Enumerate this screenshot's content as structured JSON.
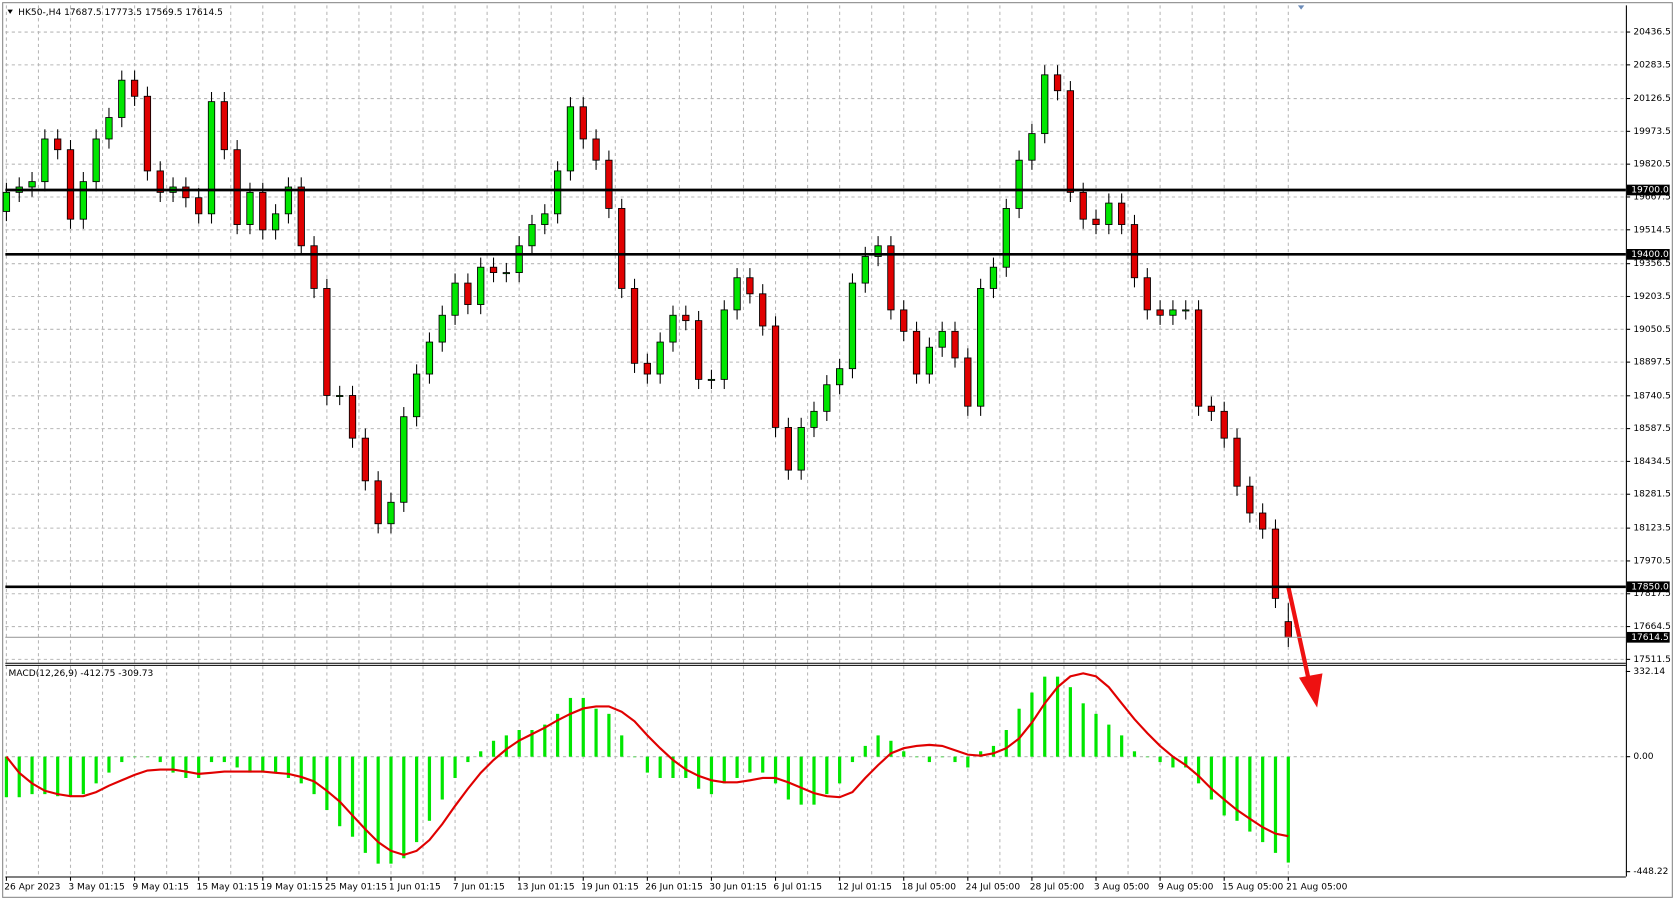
{
  "chart_data": [
    {
      "type": "candlestick",
      "title": "HK50-,H4  17687.5 17773.5 17569.5 17614.5",
      "categories": [
        "26 Apr 2023",
        null,
        null,
        null,
        null,
        "3 May 01:15",
        null,
        null,
        null,
        null,
        "9 May 01:15",
        null,
        null,
        null,
        null,
        "15 May 01:15",
        null,
        null,
        null,
        null,
        "19 May 01:15",
        null,
        null,
        null,
        null,
        "25 May 01:15",
        null,
        null,
        null,
        null,
        "1 Jun 01:15",
        null,
        null,
        null,
        null,
        "7 Jun 01:15",
        null,
        null,
        null,
        null,
        "13 Jun 01:15",
        null,
        null,
        null,
        null,
        "19 Jun 01:15",
        null,
        null,
        null,
        null,
        "26 Jun 01:15",
        null,
        null,
        null,
        null,
        "30 Jun 01:15",
        null,
        null,
        null,
        null,
        "6 Jul 01:15",
        null,
        null,
        null,
        null,
        "12 Jul 01:15",
        null,
        null,
        null,
        null,
        "18 Jul 05:00",
        null,
        null,
        null,
        null,
        "24 Jul 05:00",
        null,
        null,
        null,
        null,
        "28 Jul 05:00",
        null,
        null,
        null,
        null,
        "3 Aug 05:00",
        null,
        null,
        null,
        null,
        "9 Aug 05:00",
        null,
        null,
        null,
        null,
        "15 Aug 05:00",
        null,
        null,
        null,
        null,
        "21 Aug 05:00"
      ],
      "candles": [
        [
          19600,
          19734,
          19555,
          19689
        ],
        [
          19689,
          19759,
          19644,
          19714
        ],
        [
          19714,
          19784,
          19669,
          19739
        ],
        [
          19739,
          19983,
          19694,
          19938
        ],
        [
          19938,
          19983,
          19843,
          19888
        ],
        [
          19888,
          19933,
          19519,
          19564
        ],
        [
          19564,
          19784,
          19519,
          19739
        ],
        [
          19739,
          19983,
          19694,
          19938
        ],
        [
          19938,
          20083,
          19893,
          20038
        ],
        [
          20038,
          20257,
          19993,
          20212
        ],
        [
          20212,
          20257,
          20092,
          20137
        ],
        [
          20137,
          20182,
          19744,
          19789
        ],
        [
          19789,
          19834,
          19644,
          19689
        ],
        [
          19689,
          19759,
          19644,
          19714
        ],
        [
          19714,
          19759,
          19619,
          19664
        ],
        [
          19664,
          19709,
          19544,
          19589
        ],
        [
          19589,
          20157,
          19544,
          20112
        ],
        [
          20112,
          20157,
          19843,
          19888
        ],
        [
          19888,
          19933,
          19494,
          19539
        ],
        [
          19539,
          19734,
          19494,
          19689
        ],
        [
          19689,
          19734,
          19469,
          19514
        ],
        [
          19514,
          19634,
          19469,
          19589
        ],
        [
          19589,
          19759,
          19544,
          19714
        ],
        [
          19714,
          19759,
          19395,
          19440
        ],
        [
          19440,
          19485,
          19196,
          19241
        ],
        [
          19241,
          19286,
          18697,
          18742
        ],
        [
          18742,
          18787,
          18697,
          18742
        ],
        [
          18742,
          18787,
          18498,
          18543
        ],
        [
          18543,
          18588,
          18299,
          18344
        ],
        [
          18344,
          18389,
          18099,
          18144
        ],
        [
          18144,
          18289,
          18099,
          18244
        ],
        [
          18244,
          18688,
          18199,
          18643
        ],
        [
          18643,
          18887,
          18598,
          18842
        ],
        [
          18842,
          19036,
          18797,
          18991
        ],
        [
          18991,
          19161,
          18946,
          19116
        ],
        [
          19116,
          19311,
          19071,
          19266
        ],
        [
          19266,
          19311,
          19121,
          19166
        ],
        [
          19166,
          19385,
          19121,
          19340
        ],
        [
          19340,
          19385,
          19270,
          19315
        ],
        [
          19315,
          19360,
          19270,
          19315
        ],
        [
          19315,
          19485,
          19270,
          19440
        ],
        [
          19440,
          19584,
          19395,
          19539
        ],
        [
          19539,
          19634,
          19494,
          19589
        ],
        [
          19589,
          19834,
          19544,
          19789
        ],
        [
          19789,
          20133,
          19744,
          20088
        ],
        [
          20088,
          20133,
          19893,
          19938
        ],
        [
          19938,
          19983,
          19794,
          19839
        ],
        [
          19839,
          19884,
          19569,
          19614
        ],
        [
          19614,
          19659,
          19196,
          19241
        ],
        [
          19241,
          19286,
          18847,
          18892
        ],
        [
          18892,
          18937,
          18797,
          18842
        ],
        [
          18842,
          19036,
          18797,
          18991
        ],
        [
          18991,
          19161,
          18946,
          19116
        ],
        [
          19116,
          19161,
          19046,
          19091
        ],
        [
          19091,
          19136,
          18772,
          18817
        ],
        [
          18817,
          18862,
          18772,
          18817
        ],
        [
          18817,
          19186,
          18772,
          19141
        ],
        [
          19141,
          19336,
          19096,
          19291
        ],
        [
          19291,
          19336,
          19171,
          19216
        ],
        [
          19216,
          19261,
          19021,
          19066
        ],
        [
          19066,
          19111,
          18548,
          18593
        ],
        [
          18593,
          18638,
          18349,
          18394
        ],
        [
          18394,
          18638,
          18349,
          18593
        ],
        [
          18593,
          18713,
          18548,
          18668
        ],
        [
          18668,
          18837,
          18623,
          18792
        ],
        [
          18792,
          18912,
          18747,
          18867
        ],
        [
          18867,
          19311,
          18822,
          19266
        ],
        [
          19266,
          19435,
          19221,
          19390
        ],
        [
          19390,
          19485,
          19345,
          19440
        ],
        [
          19440,
          19485,
          19096,
          19141
        ],
        [
          19141,
          19186,
          18996,
          19041
        ],
        [
          19041,
          19086,
          18797,
          18842
        ],
        [
          18842,
          19012,
          18797,
          18967
        ],
        [
          18967,
          19086,
          18922,
          19041
        ],
        [
          19041,
          19086,
          18872,
          18917
        ],
        [
          18917,
          18962,
          18647,
          18692
        ],
        [
          18692,
          19286,
          18647,
          19241
        ],
        [
          19241,
          19385,
          19196,
          19340
        ],
        [
          19340,
          19659,
          19295,
          19614
        ],
        [
          19614,
          19884,
          19569,
          19839
        ],
        [
          19839,
          20008,
          19794,
          19963
        ],
        [
          19963,
          20282,
          19918,
          20237
        ],
        [
          20237,
          20282,
          20118,
          20163
        ],
        [
          20163,
          20208,
          19644,
          19689
        ],
        [
          19689,
          19734,
          19519,
          19564
        ],
        [
          19564,
          19609,
          19494,
          19539
        ],
        [
          19539,
          19684,
          19494,
          19639
        ],
        [
          19639,
          19684,
          19494,
          19539
        ],
        [
          19539,
          19584,
          19246,
          19291
        ],
        [
          19291,
          19336,
          19096,
          19141
        ],
        [
          19141,
          19186,
          19071,
          19116
        ],
        [
          19116,
          19186,
          19071,
          19141
        ],
        [
          19141,
          19186,
          19096,
          19141
        ],
        [
          19141,
          19186,
          18647,
          18692
        ],
        [
          18692,
          18737,
          18623,
          18668
        ],
        [
          18668,
          18713,
          18498,
          18543
        ],
        [
          18543,
          18588,
          18274,
          18319
        ],
        [
          18319,
          18364,
          18149,
          18194
        ],
        [
          18194,
          18239,
          18074,
          18119
        ],
        [
          18119,
          18164,
          17751,
          17796
        ],
        [
          17687.5,
          17773.5,
          17569.5,
          17614.5
        ]
      ],
      "up_color": "#00e600",
      "down_color": "#e00000",
      "ylim": [
        17496,
        20561
      ],
      "yticks": [
        20436.5,
        20283.5,
        20126.5,
        19973.5,
        19820.5,
        19667.5,
        19514.5,
        19356.5,
        19203.5,
        19050.5,
        18897.5,
        18740.5,
        18587.5,
        18434.5,
        18281.5,
        18123.5,
        17970.5,
        17817.5,
        17664.5,
        17511.5
      ],
      "levels": [
        {
          "value": 19700,
          "label": "19700.0"
        },
        {
          "value": 19400,
          "label": "19400.0"
        },
        {
          "value": 17850,
          "label": "17850.0"
        }
      ],
      "last_price": 17614.5,
      "grid": true
    },
    {
      "type": "macd",
      "title": "MACD(12,26,9) -412.75 -309.73",
      "histogram": {
        "color": "#00e600",
        "values": [
          -158,
          -158,
          -146,
          -146,
          -154,
          -154,
          -146,
          -104,
          -62,
          -21,
          0,
          0,
          -21,
          -62,
          -83,
          -83,
          -21,
          -21,
          -42,
          -62,
          -62,
          -62,
          -83,
          -104,
          -146,
          -208,
          -271,
          -312,
          -375,
          -417,
          -417,
          -396,
          -333,
          -250,
          -167,
          -83,
          -21,
          21,
          62,
          83,
          104,
          104,
          125,
          167,
          229,
          229,
          187,
          167,
          83,
          0,
          -62,
          -83,
          -83,
          -83,
          -125,
          -146,
          -104,
          -83,
          -62,
          -62,
          -104,
          -167,
          -187,
          -187,
          -146,
          -104,
          -21,
          42,
          83,
          62,
          21,
          0,
          -21,
          0,
          -21,
          -42,
          21,
          42,
          104,
          187,
          250,
          312,
          312,
          271,
          208,
          167,
          125,
          83,
          21,
          0,
          -21,
          -42,
          -42,
          -104,
          -167,
          -229,
          -250,
          -292,
          -333,
          -375,
          -412.75
        ]
      },
      "signal": {
        "color": "#e00000",
        "values": [
          0,
          -63,
          -104,
          -133,
          -146,
          -154,
          -154,
          -138,
          -113,
          -92,
          -71,
          -54,
          -50,
          -50,
          -58,
          -67,
          -63,
          -58,
          -58,
          -58,
          -58,
          -63,
          -67,
          -79,
          -96,
          -133,
          -175,
          -229,
          -283,
          -333,
          -367,
          -383,
          -367,
          -325,
          -263,
          -192,
          -125,
          -63,
          -13,
          29,
          63,
          88,
          113,
          142,
          167,
          188,
          196,
          196,
          175,
          138,
          83,
          33,
          -13,
          -50,
          -75,
          -92,
          -100,
          -100,
          -92,
          -83,
          -83,
          -100,
          -121,
          -142,
          -154,
          -158,
          -138,
          -83,
          -33,
          13,
          33,
          42,
          46,
          42,
          25,
          8,
          4,
          13,
          33,
          71,
          133,
          208,
          271,
          313,
          325,
          313,
          271,
          208,
          146,
          92,
          42,
          0,
          -33,
          -75,
          -125,
          -167,
          -208,
          -242,
          -275,
          -300,
          -309.73
        ]
      },
      "ylim": [
        -467,
        358
      ],
      "yticks": [
        332.14,
        {
          "value": 0,
          "label": "0.00"
        },
        -448.22
      ]
    }
  ]
}
